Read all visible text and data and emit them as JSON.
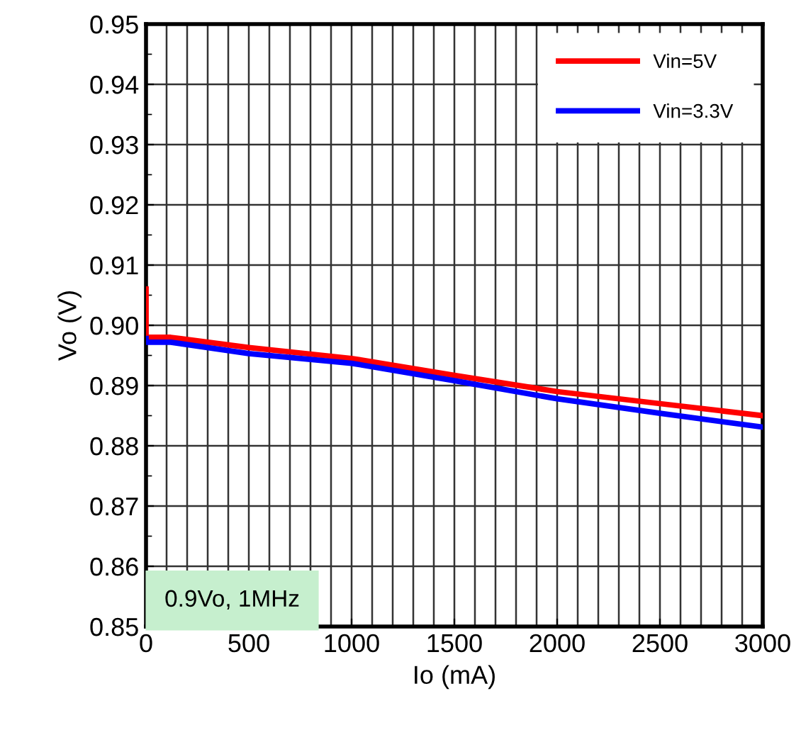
{
  "chart_data": {
    "type": "line",
    "xlabel": "Io (mA)",
    "ylabel": "Vo (V)",
    "xlim": [
      0,
      3000
    ],
    "xticks": [
      0,
      500,
      1000,
      1500,
      2000,
      2500,
      3000
    ],
    "ylim": [
      0.85,
      0.95
    ],
    "yticks": [
      {
        "value": 0.85,
        "label": "0.85"
      },
      {
        "value": 0.86,
        "label": "0.86"
      },
      {
        "value": 0.87,
        "label": "0.87"
      },
      {
        "value": 0.88,
        "label": "0.88"
      },
      {
        "value": 0.89,
        "label": "0.89"
      },
      {
        "value": 0.9,
        "label": "0.90"
      },
      {
        "value": 0.91,
        "label": "0.91"
      },
      {
        "value": 0.92,
        "label": "0.92"
      },
      {
        "value": 0.93,
        "label": "0.93"
      },
      {
        "value": 0.94,
        "label": "0.94"
      },
      {
        "value": 0.95,
        "label": "0.95"
      }
    ],
    "grid": true,
    "legend": "top right",
    "marker": "none",
    "line_style": "solid",
    "series": [
      {
        "name": "Vin=5V",
        "color": "#ff0000",
        "x": [
          0,
          0,
          10,
          120,
          500,
          1000,
          1500,
          2000,
          2500,
          3000
        ],
        "values": [
          0.906,
          0.898,
          0.898,
          0.898,
          0.8963,
          0.8945,
          0.8917,
          0.889,
          0.887,
          0.885
        ]
      },
      {
        "name": "Vin=3.3V",
        "color": "#0000ff",
        "x": [
          0,
          0,
          10,
          120,
          500,
          1000,
          1500,
          2000,
          2500,
          3000
        ],
        "values": [
          0.8978,
          0.8972,
          0.8972,
          0.8972,
          0.8953,
          0.8937,
          0.8908,
          0.8878,
          0.8854,
          0.8831
        ]
      }
    ],
    "annotations": [
      "0.9Vo, 1MHz"
    ]
  }
}
